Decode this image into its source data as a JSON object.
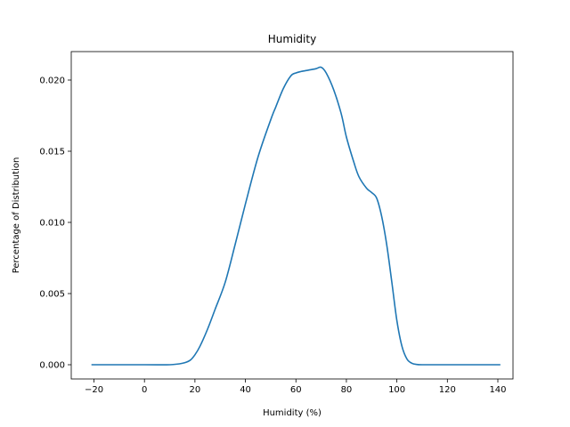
{
  "chart_data": {
    "type": "line",
    "title": "Humidity",
    "xlabel": "Humidity (%)",
    "ylabel": "Percentage of Distribution",
    "xlim": [
      -29,
      146
    ],
    "ylim": [
      -0.001,
      0.022
    ],
    "xticks": [
      -20,
      0,
      20,
      40,
      60,
      80,
      100,
      120,
      140
    ],
    "xtick_labels": [
      "−20",
      "0",
      "20",
      "40",
      "60",
      "80",
      "100",
      "120",
      "140"
    ],
    "yticks": [
      0.0,
      0.005,
      0.01,
      0.015,
      0.02
    ],
    "ytick_labels": [
      "0.000",
      "0.005",
      "0.010",
      "0.015",
      "0.020"
    ],
    "grid": false,
    "line_color": "#1f77b4",
    "series": [
      {
        "x": [
          -21,
          0,
          10,
          15,
          18,
          20,
          22,
          25,
          28,
          32,
          36,
          40,
          45,
          50,
          52,
          55,
          58,
          60,
          62,
          65,
          68,
          70,
          72,
          75,
          78,
          80,
          83,
          85,
          88,
          90,
          92,
          94,
          96,
          98,
          100,
          102,
          104,
          106,
          108,
          110,
          120,
          141
        ],
        "y": [
          0.0,
          0.0,
          0.0,
          0.0001,
          0.0003,
          0.0007,
          0.0013,
          0.0025,
          0.0039,
          0.0058,
          0.0085,
          0.0113,
          0.0146,
          0.0172,
          0.0181,
          0.0194,
          0.0203,
          0.0205,
          0.0206,
          0.0207,
          0.0208,
          0.0209,
          0.0205,
          0.0193,
          0.0176,
          0.016,
          0.0142,
          0.0132,
          0.0124,
          0.0121,
          0.0117,
          0.0104,
          0.0084,
          0.0058,
          0.0031,
          0.0013,
          0.0004,
          0.0001,
          2e-05,
          0.0,
          0.0,
          0.0
        ]
      }
    ]
  }
}
